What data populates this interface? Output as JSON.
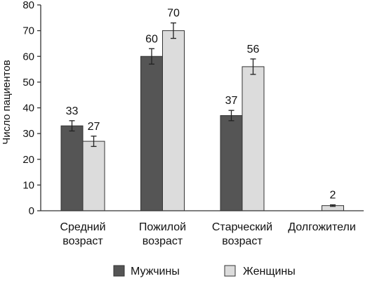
{
  "chart_data": {
    "type": "bar",
    "ylabel": "Число пациентов",
    "ylim": [
      0,
      80
    ],
    "yticks": [
      0,
      10,
      20,
      30,
      40,
      50,
      60,
      70,
      80
    ],
    "categories": [
      [
        "Средний",
        "возраст"
      ],
      [
        "Пожилой",
        "возраст"
      ],
      [
        "Старческий",
        "возраст"
      ],
      [
        "Долгожители"
      ]
    ],
    "series": [
      {
        "name": "Мужчины",
        "color": "#555555",
        "values": [
          33,
          60,
          37,
          null
        ],
        "errors": [
          2,
          3,
          2,
          null
        ]
      },
      {
        "name": "Женщины",
        "color": "#dcdcdc",
        "values": [
          27,
          70,
          56,
          2
        ],
        "errors": [
          2,
          3,
          3,
          0.3
        ]
      }
    ],
    "legend": "bottom",
    "grid": false
  }
}
